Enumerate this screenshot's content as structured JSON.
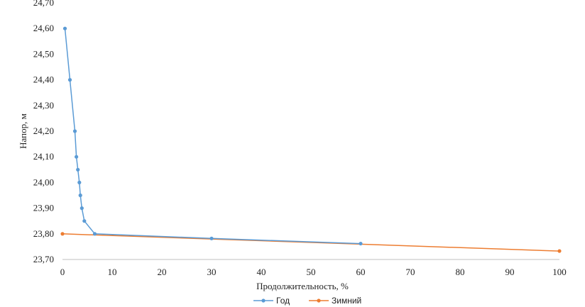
{
  "chart_data": {
    "type": "line",
    "title": "",
    "xlabel": "Продолжительность, %",
    "ylabel": "Напор, м",
    "xlim": [
      0,
      100
    ],
    "ylim": [
      23.7,
      24.7
    ],
    "x_ticks": [
      "0",
      "10",
      "20",
      "30",
      "40",
      "50",
      "60",
      "70",
      "80",
      "90",
      "100"
    ],
    "y_ticks": [
      "23,70",
      "23,80",
      "23,90",
      "24,00",
      "24,10",
      "24,20",
      "24,30",
      "24,40",
      "24,50",
      "24,60",
      "24,70"
    ],
    "grid": false,
    "legend_position": "bottom",
    "series": [
      {
        "name": "Год",
        "color": "#5b9bd5",
        "x": [
          0.5,
          1.5,
          2.5,
          2.8,
          3.1,
          3.4,
          3.6,
          3.9,
          4.4,
          6.5,
          30,
          60
        ],
        "y": [
          24.6,
          24.4,
          24.2,
          24.1,
          24.05,
          24.0,
          23.95,
          23.9,
          23.85,
          23.8,
          23.782,
          23.762
        ]
      },
      {
        "name": "Зимний",
        "color": "#ed7d31",
        "x": [
          0,
          100
        ],
        "y": [
          23.8,
          23.733
        ]
      }
    ]
  }
}
